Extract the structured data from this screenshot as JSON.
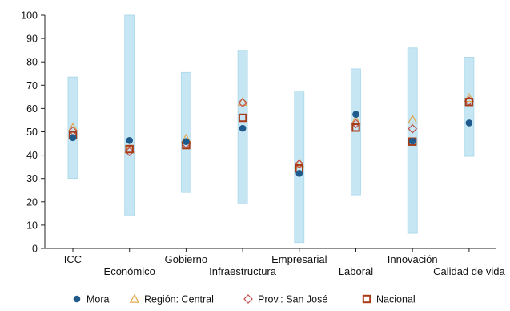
{
  "chart_data": {
    "type": "range-dot",
    "categories": [
      "ICC",
      "Económico",
      "Gobierno",
      "Infraestructura",
      "Empresarial",
      "Laboral",
      "Innovación",
      "Calidad de vida"
    ],
    "range": {
      "low": [
        30,
        14,
        24,
        19.5,
        2.5,
        23,
        6.5,
        39.5
      ],
      "high": [
        73.5,
        100,
        75.5,
        85,
        67.5,
        77,
        86,
        82
      ]
    },
    "series": [
      {
        "name": "Mora",
        "marker": "dot",
        "color": "#1f5a8c",
        "values": [
          47.5,
          46.3,
          45.8,
          51.5,
          32.2,
          57.5,
          46,
          53.8
        ]
      },
      {
        "name": "Región: Central",
        "marker": "triangle",
        "color": "#e3a74c",
        "values": [
          51.8,
          42.5,
          47,
          62.8,
          36.5,
          54.8,
          55.2,
          64.5
        ]
      },
      {
        "name": "Prov.: San José",
        "marker": "diamond",
        "color": "#c0504d",
        "values": [
          50.3,
          41.5,
          44.8,
          62.5,
          36.2,
          53.5,
          51.3,
          63.2
        ]
      },
      {
        "name": "Nacional",
        "marker": "square",
        "color": "#a93a17",
        "values": [
          48.5,
          42.6,
          44.3,
          56,
          34.3,
          51.8,
          45.8,
          62.8
        ]
      }
    ],
    "ylim": [
      0,
      100
    ],
    "yticks": [
      0,
      10,
      20,
      30,
      40,
      50,
      60,
      70,
      80,
      90,
      100
    ],
    "grid": false,
    "legend_position": "bottom",
    "colors": {
      "range_fill": "#c6e6f3",
      "range_stroke": "#a9d7ea",
      "axis": "#222222"
    }
  }
}
